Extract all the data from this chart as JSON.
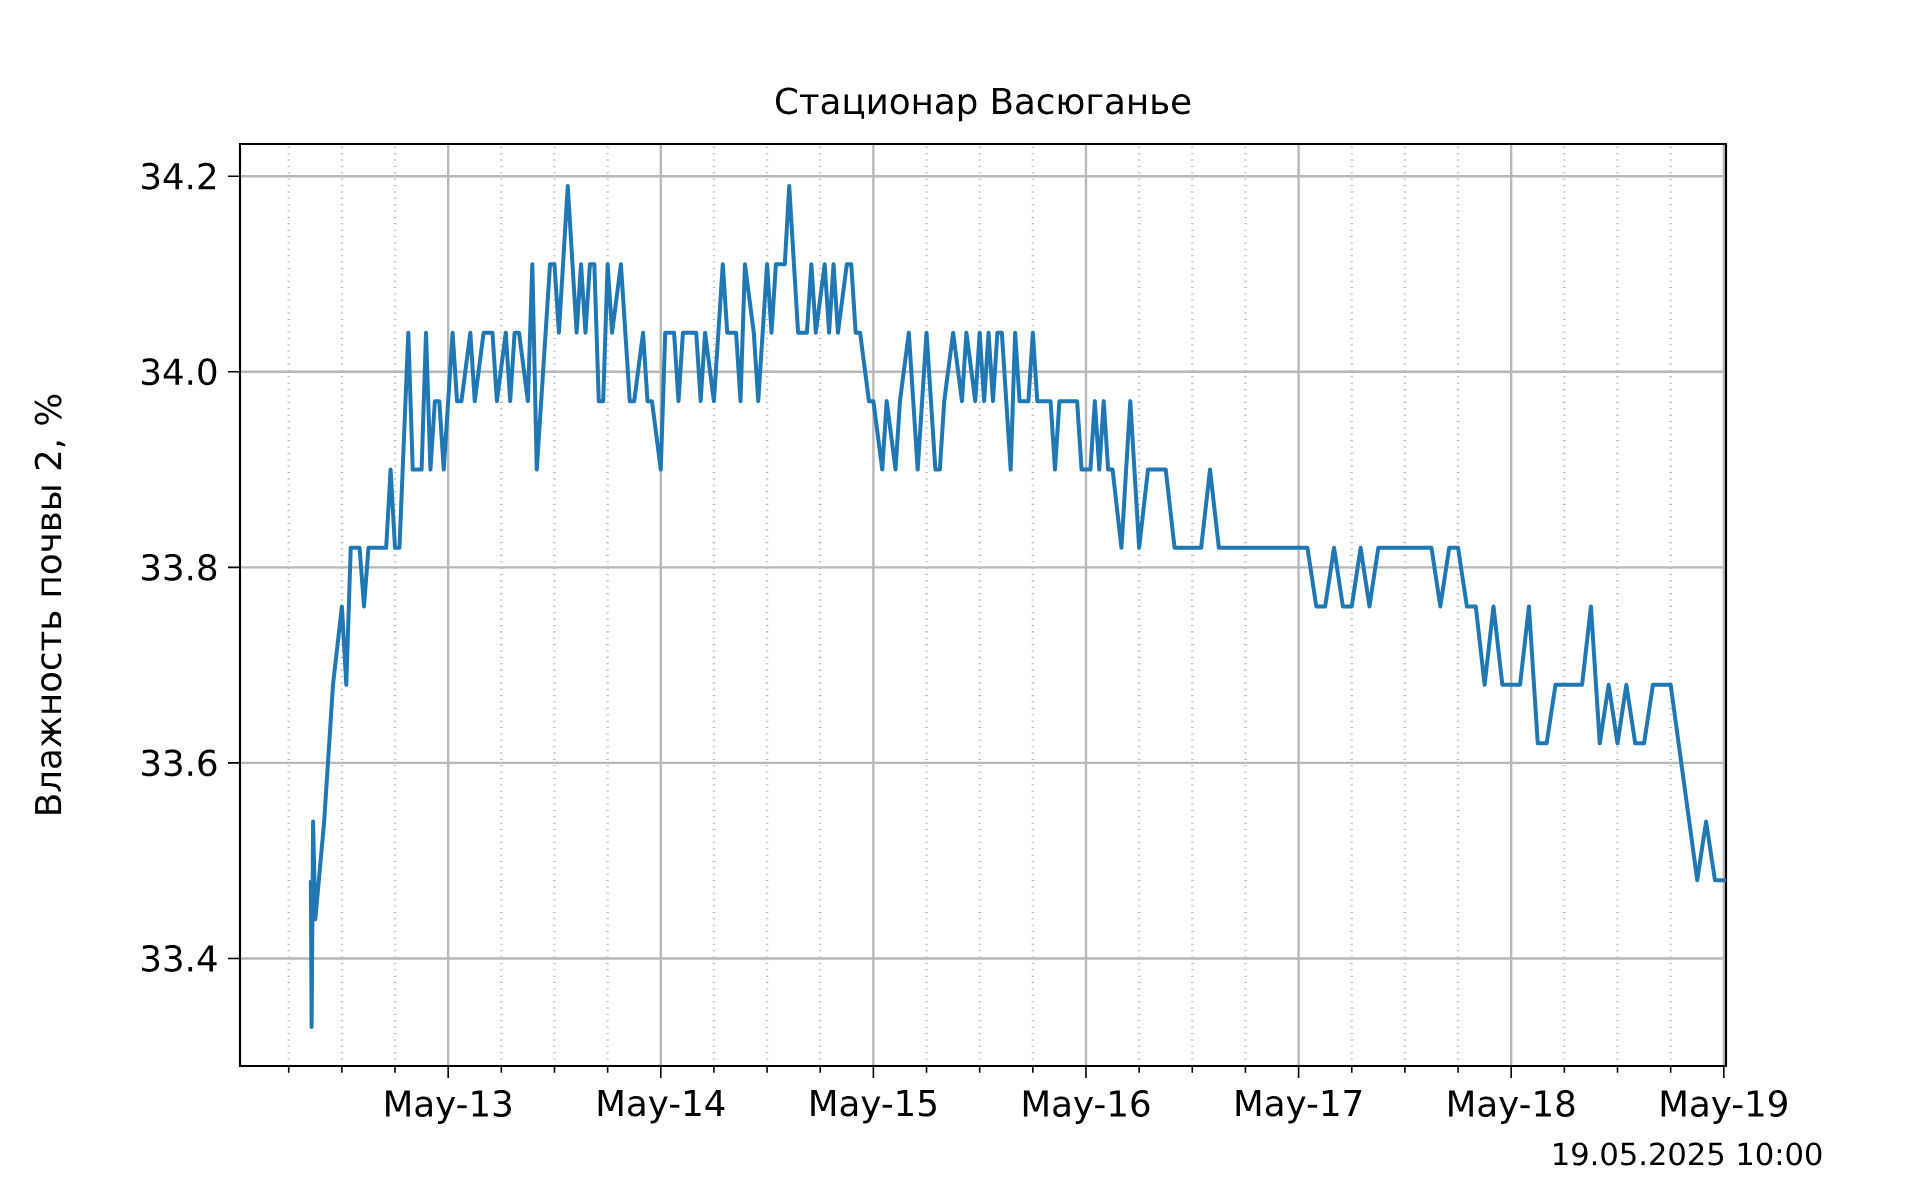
{
  "chart_data": {
    "type": "line",
    "title": "Стационар  Васюганье",
    "ylabel": "Влажность почвы 2, %",
    "annotations": [
      "19.05.2025 10:00"
    ],
    "x": [
      "2025-05-12T08:30",
      "2025-05-12T08:35",
      "2025-05-12T08:45",
      "2025-05-12T09:00",
      "2025-05-12T10:00",
      "2025-05-12T11:00",
      "2025-05-12T12:00",
      "2025-05-12T12:30",
      "2025-05-12T13:00",
      "2025-05-12T14:00",
      "2025-05-12T14:30",
      "2025-05-12T15:00",
      "2025-05-12T17:00",
      "2025-05-12T17:30",
      "2025-05-12T18:00",
      "2025-05-12T18:30",
      "2025-05-12T19:30",
      "2025-05-12T20:00",
      "2025-05-12T21:00",
      "2025-05-12T21:30",
      "2025-05-12T22:00",
      "2025-05-12T22:30",
      "2025-05-12T23:00",
      "2025-05-12T23:30",
      "2025-05-13T00:30",
      "2025-05-13T01:00",
      "2025-05-13T01:30",
      "2025-05-13T02:30",
      "2025-05-13T03:00",
      "2025-05-13T04:00",
      "2025-05-13T05:00",
      "2025-05-13T05:30",
      "2025-05-13T06:30",
      "2025-05-13T07:00",
      "2025-05-13T07:30",
      "2025-05-13T08:00",
      "2025-05-13T09:00",
      "2025-05-13T09:30",
      "2025-05-13T10:00",
      "2025-05-13T11:00",
      "2025-05-13T11:30",
      "2025-05-13T12:00",
      "2025-05-13T12:30",
      "2025-05-13T13:30",
      "2025-05-13T14:30",
      "2025-05-13T15:00",
      "2025-05-13T15:30",
      "2025-05-13T16:00",
      "2025-05-13T16:30",
      "2025-05-13T17:00",
      "2025-05-13T17:30",
      "2025-05-13T18:00",
      "2025-05-13T18:30",
      "2025-05-13T19:30",
      "2025-05-13T20:30",
      "2025-05-13T21:00",
      "2025-05-13T22:00",
      "2025-05-13T22:30",
      "2025-05-13T23:00",
      "2025-05-14T00:00",
      "2025-05-14T00:30",
      "2025-05-14T01:30",
      "2025-05-14T02:00",
      "2025-05-14T02:30",
      "2025-05-14T04:00",
      "2025-05-14T04:30",
      "2025-05-14T05:00",
      "2025-05-14T06:00",
      "2025-05-14T07:00",
      "2025-05-14T07:30",
      "2025-05-14T08:30",
      "2025-05-14T09:00",
      "2025-05-14T09:30",
      "2025-05-14T10:30",
      "2025-05-14T11:00",
      "2025-05-14T12:00",
      "2025-05-14T12:30",
      "2025-05-14T13:00",
      "2025-05-14T14:00",
      "2025-05-14T14:30",
      "2025-05-14T15:30",
      "2025-05-14T16:30",
      "2025-05-14T17:00",
      "2025-05-14T17:30",
      "2025-05-14T18:30",
      "2025-05-14T19:00",
      "2025-05-14T19:30",
      "2025-05-14T20:00",
      "2025-05-14T21:00",
      "2025-05-14T21:30",
      "2025-05-14T22:00",
      "2025-05-14T22:30",
      "2025-05-14T23:30",
      "2025-05-15T00:00",
      "2025-05-15T01:00",
      "2025-05-15T01:30",
      "2025-05-15T02:30",
      "2025-05-15T03:00",
      "2025-05-15T04:00",
      "2025-05-15T05:00",
      "2025-05-15T06:00",
      "2025-05-15T07:00",
      "2025-05-15T07:30",
      "2025-05-15T08:00",
      "2025-05-15T09:00",
      "2025-05-15T10:00",
      "2025-05-15T10:30",
      "2025-05-15T11:30",
      "2025-05-15T12:00",
      "2025-05-15T12:30",
      "2025-05-15T13:00",
      "2025-05-15T13:30",
      "2025-05-15T14:00",
      "2025-05-15T14:30",
      "2025-05-15T15:30",
      "2025-05-15T16:00",
      "2025-05-15T16:30",
      "2025-05-15T17:30",
      "2025-05-15T18:00",
      "2025-05-15T18:30",
      "2025-05-15T20:00",
      "2025-05-15T20:30",
      "2025-05-15T21:00",
      "2025-05-15T23:00",
      "2025-05-15T23:30",
      "2025-05-16T00:30",
      "2025-05-16T01:00",
      "2025-05-16T01:30",
      "2025-05-16T02:00",
      "2025-05-16T02:30",
      "2025-05-16T03:00",
      "2025-05-16T04:00",
      "2025-05-16T05:00",
      "2025-05-16T06:00",
      "2025-05-16T07:00",
      "2025-05-16T09:00",
      "2025-05-16T10:00",
      "2025-05-16T13:00",
      "2025-05-16T14:00",
      "2025-05-16T15:00",
      "2025-05-17T01:00",
      "2025-05-17T02:00",
      "2025-05-17T03:00",
      "2025-05-17T04:00",
      "2025-05-17T05:00",
      "2025-05-17T06:00",
      "2025-05-17T07:00",
      "2025-05-17T08:00",
      "2025-05-17T09:00",
      "2025-05-17T15:00",
      "2025-05-17T16:00",
      "2025-05-17T17:00",
      "2025-05-17T18:00",
      "2025-05-17T19:00",
      "2025-05-17T20:00",
      "2025-05-17T21:00",
      "2025-05-17T22:00",
      "2025-05-17T23:00",
      "2025-05-18T01:00",
      "2025-05-18T02:00",
      "2025-05-18T03:00",
      "2025-05-18T04:00",
      "2025-05-18T05:00",
      "2025-05-18T08:00",
      "2025-05-18T09:00",
      "2025-05-18T10:00",
      "2025-05-18T11:00",
      "2025-05-18T12:00",
      "2025-05-18T13:00",
      "2025-05-18T14:00",
      "2025-05-18T15:00",
      "2025-05-18T16:00",
      "2025-05-18T18:00",
      "2025-05-18T21:00",
      "2025-05-18T22:00",
      "2025-05-18T23:00",
      "2025-05-19T00:15"
    ],
    "series": [
      {
        "color": "#1f77b4",
        "values": [
          33.48,
          33.33,
          33.54,
          33.44,
          33.54,
          33.68,
          33.76,
          33.68,
          33.82,
          33.82,
          33.76,
          33.82,
          33.82,
          33.9,
          33.82,
          33.82,
          34.04,
          33.9,
          33.9,
          34.04,
          33.9,
          33.97,
          33.97,
          33.9,
          34.04,
          33.97,
          33.97,
          34.04,
          33.97,
          34.04,
          34.04,
          33.97,
          34.04,
          33.97,
          34.04,
          34.04,
          33.97,
          34.11,
          33.9,
          34.04,
          34.11,
          34.11,
          34.04,
          34.19,
          34.04,
          34.11,
          34.04,
          34.11,
          34.11,
          33.97,
          33.97,
          34.11,
          34.04,
          34.11,
          33.97,
          33.97,
          34.04,
          33.97,
          33.97,
          33.9,
          34.04,
          34.04,
          33.97,
          34.04,
          34.04,
          33.97,
          34.04,
          33.97,
          34.11,
          34.04,
          34.04,
          33.97,
          34.11,
          34.04,
          33.97,
          34.11,
          34.04,
          34.11,
          34.11,
          34.19,
          34.04,
          34.04,
          34.11,
          34.04,
          34.11,
          34.04,
          34.11,
          34.04,
          34.11,
          34.11,
          34.04,
          34.04,
          33.97,
          33.97,
          33.9,
          33.97,
          33.9,
          33.97,
          34.04,
          33.9,
          34.04,
          33.9,
          33.9,
          33.97,
          34.04,
          33.97,
          34.04,
          33.97,
          34.04,
          33.97,
          34.04,
          33.97,
          34.04,
          34.04,
          33.9,
          34.04,
          33.97,
          33.97,
          34.04,
          33.97,
          33.97,
          33.9,
          33.97,
          33.97,
          33.9,
          33.9,
          33.97,
          33.9,
          33.97,
          33.9,
          33.9,
          33.82,
          33.97,
          33.82,
          33.9,
          33.9,
          33.82,
          33.82,
          33.9,
          33.82,
          33.82,
          33.76,
          33.76,
          33.82,
          33.76,
          33.76,
          33.82,
          33.76,
          33.82,
          33.82,
          33.76,
          33.82,
          33.82,
          33.76,
          33.76,
          33.68,
          33.76,
          33.68,
          33.68,
          33.76,
          33.62,
          33.62,
          33.68,
          33.68,
          33.76,
          33.62,
          33.68,
          33.62,
          33.68,
          33.62,
          33.62,
          33.68,
          33.68,
          33.48,
          33.54,
          33.48,
          33.48
        ]
      }
    ],
    "xlim": [
      "2025-05-12T00:30",
      "2025-05-19T00:15"
    ],
    "xticks": [
      {
        "value": "2025-05-12T06:00",
        "label": null
      },
      {
        "value": "2025-05-12T12:00",
        "label": null
      },
      {
        "value": "2025-05-12T18:00",
        "label": null
      },
      {
        "value": "2025-05-13",
        "label": "May-13"
      },
      {
        "value": "2025-05-13T06:00",
        "label": null
      },
      {
        "value": "2025-05-13T12:00",
        "label": null
      },
      {
        "value": "2025-05-13T18:00",
        "label": null
      },
      {
        "value": "2025-05-14",
        "label": "May-14"
      },
      {
        "value": "2025-05-14T06:00",
        "label": null
      },
      {
        "value": "2025-05-14T12:00",
        "label": null
      },
      {
        "value": "2025-05-14T18:00",
        "label": null
      },
      {
        "value": "2025-05-15",
        "label": "May-15"
      },
      {
        "value": "2025-05-15T06:00",
        "label": null
      },
      {
        "value": "2025-05-15T12:00",
        "label": null
      },
      {
        "value": "2025-05-15T18:00",
        "label": null
      },
      {
        "value": "2025-05-16",
        "label": "May-16"
      },
      {
        "value": "2025-05-16T06:00",
        "label": null
      },
      {
        "value": "2025-05-16T12:00",
        "label": null
      },
      {
        "value": "2025-05-16T18:00",
        "label": null
      },
      {
        "value": "2025-05-17",
        "label": "May-17"
      },
      {
        "value": "2025-05-17T06:00",
        "label": null
      },
      {
        "value": "2025-05-17T12:00",
        "label": null
      },
      {
        "value": "2025-05-17T18:00",
        "label": null
      },
      {
        "value": "2025-05-18",
        "label": "May-18"
      },
      {
        "value": "2025-05-18T06:00",
        "label": null
      },
      {
        "value": "2025-05-18T12:00",
        "label": null
      },
      {
        "value": "2025-05-18T18:00",
        "label": null
      },
      {
        "value": "2025-05-19",
        "label": "May-19"
      }
    ],
    "ylim": [
      33.29,
      34.233
    ],
    "yticks": [
      33.4,
      33.6,
      33.8,
      {
        "value": 34.0,
        "label": "34.0"
      },
      34.2
    ],
    "grid": true
  }
}
